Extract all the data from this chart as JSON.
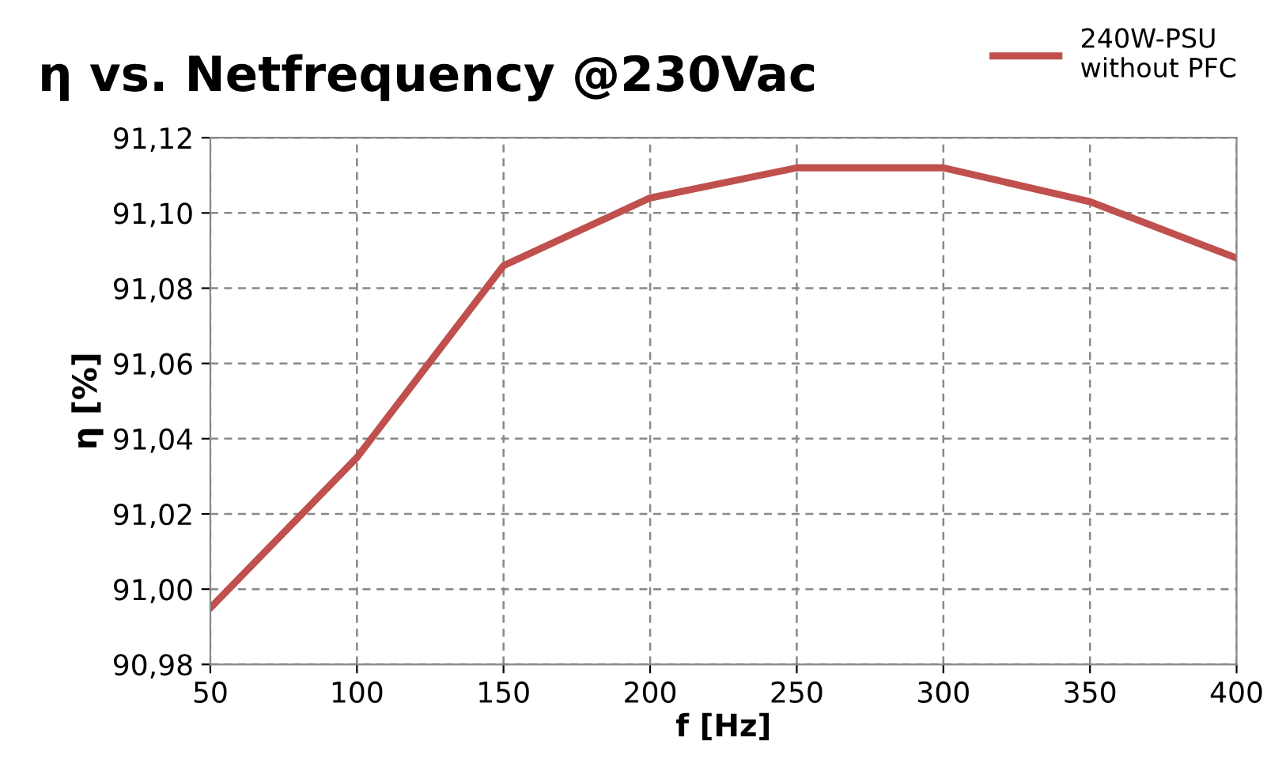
{
  "chart_data": {
    "type": "line",
    "title": "η vs. Netfrequency @230Vac",
    "xlabel": "f [Hz]",
    "ylabel": "η [%]",
    "x": [
      50,
      100,
      150,
      200,
      250,
      300,
      350,
      400
    ],
    "series": [
      {
        "name": "240W-PSU\nwithout PFC",
        "color": "#c0504d",
        "values": [
          90.995,
          91.035,
          91.086,
          91.104,
          91.112,
          91.112,
          91.103,
          91.088
        ]
      }
    ],
    "xlim": [
      50,
      400
    ],
    "xticks": [
      50,
      100,
      150,
      200,
      250,
      300,
      350,
      400
    ],
    "ylim": [
      90.98,
      91.12
    ],
    "yticks": [
      {
        "value": 90.98,
        "label": "90,98"
      },
      {
        "value": 91.0,
        "label": "91,00"
      },
      {
        "value": 91.02,
        "label": "91,02"
      },
      {
        "value": 91.04,
        "label": "91,04"
      },
      {
        "value": 91.06,
        "label": "91,06"
      },
      {
        "value": 91.08,
        "label": "91,08"
      },
      {
        "value": 91.1,
        "label": "91,10"
      },
      {
        "value": 91.12,
        "label": "91,12"
      }
    ],
    "grid": true,
    "legend": "top right",
    "marker": "none",
    "line_style": "solid"
  }
}
